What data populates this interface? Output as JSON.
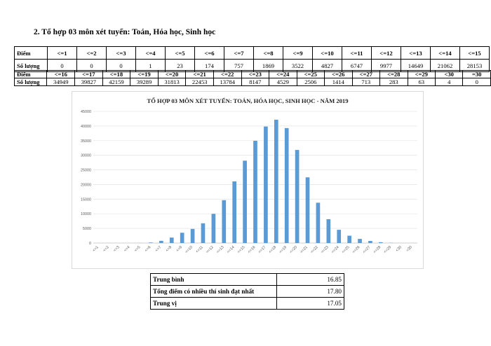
{
  "section_title": "2. Tổ hợp 03 môn xét tuyển: Toán, Hóa học, Sinh học",
  "table1": {
    "diem_label": "Điểm",
    "so_luong_label": "Số lượng",
    "scores": [
      "<=1",
      "<=2",
      "<=3",
      "<=4",
      "<=5",
      "<=6",
      "<=7",
      "<=8",
      "<=9",
      "<=10",
      "<=11",
      "<=12",
      "<=13",
      "<=14",
      "<=15"
    ],
    "counts": [
      "0",
      "0",
      "0",
      "1",
      "23",
      "174",
      "757",
      "1869",
      "3522",
      "4827",
      "6747",
      "9977",
      "14649",
      "21062",
      "28153"
    ]
  },
  "table2": {
    "diem_label": "Điểm",
    "so_luong_label": "Số lượng",
    "scores": [
      "<=16",
      "<=17",
      "<=18",
      "<=19",
      "<=20",
      "<=21",
      "<=22",
      "<=23",
      "<=24",
      "<=25",
      "<=26",
      "<=27",
      "<=28",
      "<=29",
      "<30",
      "=30"
    ],
    "counts": [
      "34949",
      "39827",
      "42159",
      "39289",
      "31813",
      "22453",
      "13784",
      "8147",
      "4529",
      "2506",
      "1414",
      "713",
      "283",
      "63",
      "4",
      "0"
    ]
  },
  "chart_data": {
    "type": "bar",
    "title": "TỔ HỢP 03 MÔN XÉT TUYỂN: TOÁN, HÓA HỌC, SINH HỌC - NĂM 2019",
    "categories": [
      "<=1",
      "<=2",
      "<=3",
      "<=4",
      "<=5",
      "<=6",
      "<=7",
      "<=8",
      "<=9",
      "<=10",
      "<=11",
      "<=12",
      "<=13",
      "<=14",
      "<=15",
      "<=16",
      "<=17",
      "<=18",
      "<=19",
      "<=20",
      "<=21",
      "<=22",
      "<=23",
      "<=24",
      "<=25",
      "<=26",
      "<=27",
      "<=28",
      "<=29",
      "<30",
      "=30"
    ],
    "values": [
      0,
      0,
      0,
      1,
      23,
      174,
      757,
      1869,
      3522,
      4827,
      6747,
      9977,
      14649,
      21062,
      28153,
      34949,
      39827,
      42159,
      39289,
      31813,
      22453,
      13784,
      8147,
      4529,
      2506,
      1414,
      713,
      283,
      63,
      4,
      0
    ],
    "ylim": [
      0,
      45000
    ],
    "yticks": [
      0,
      5000,
      10000,
      15000,
      20000,
      25000,
      30000,
      35000,
      40000,
      45000
    ],
    "bar_color": "#5b9bd5",
    "grid": true,
    "xlabel": "",
    "ylabel": ""
  },
  "summary": [
    {
      "label": "Trung bình",
      "value": "16.85"
    },
    {
      "label": "Tổng điểm có nhiều thí sinh đạt nhất",
      "value": "17.80"
    },
    {
      "label": "Trung vị",
      "value": "17.05"
    }
  ]
}
